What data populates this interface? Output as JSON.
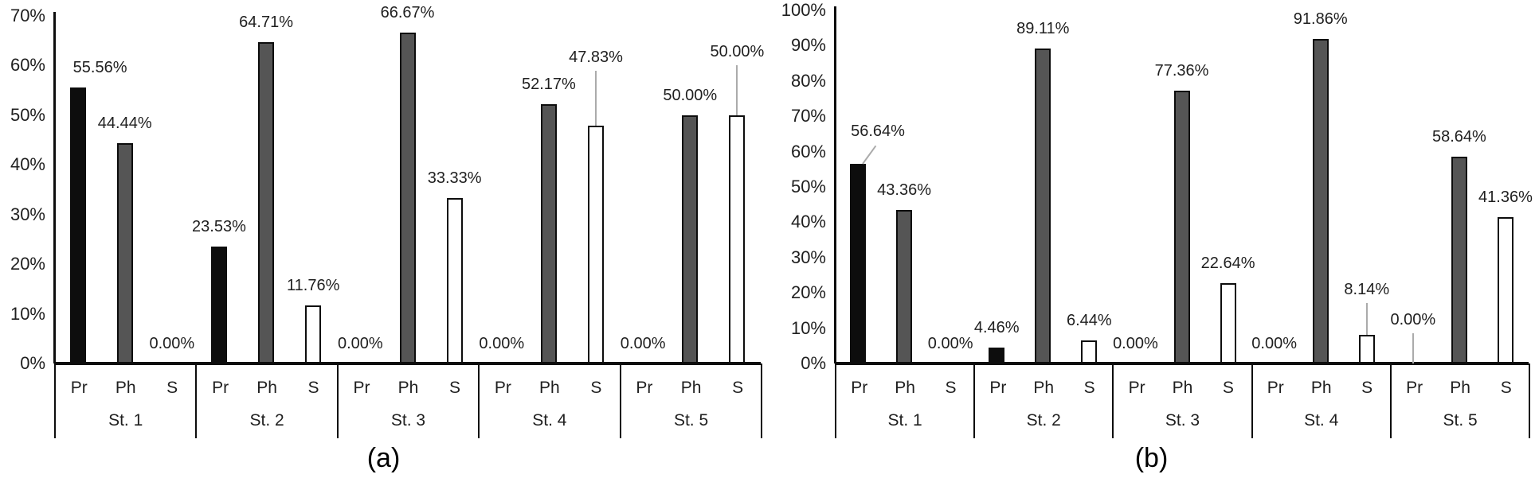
{
  "figure_type": "two-panel clustered bar chart",
  "colors": {
    "bar_pr": "#0d0d0d",
    "bar_ph": "#555555",
    "bar_s_fill": "#ffffff",
    "outline": "#0d0d0d",
    "leader_line": "#ababab",
    "text": "#1f1f1f"
  },
  "chart_data": [
    {
      "id": "a",
      "type": "bar",
      "caption": "(a)",
      "title": "",
      "grid": false,
      "legend": "none",
      "value_label_format": "0.00%",
      "y_axis": {
        "min": 0,
        "max": 70,
        "step": 10,
        "tick_labels": [
          "0%",
          "10%",
          "20%",
          "30%",
          "40%",
          "50%",
          "60%",
          "70%"
        ]
      },
      "group_labels": [
        "St. 1",
        "St. 2",
        "St. 3",
        "St. 4",
        "St. 5"
      ],
      "bar_labels": [
        "Pr",
        "Ph",
        "S"
      ],
      "series": [
        {
          "name": "Pr",
          "values": [
            55.56,
            23.53,
            0.0,
            0.0,
            0.0
          ]
        },
        {
          "name": "Ph",
          "values": [
            44.44,
            64.71,
            66.67,
            52.17,
            50.0
          ]
        },
        {
          "name": "S",
          "values": [
            0.0,
            11.76,
            33.33,
            47.83,
            50.0
          ]
        }
      ],
      "points": [
        {
          "group": "St. 1",
          "bar": "Pr",
          "value": 55.56,
          "label": "55.56%",
          "label_dx": 28
        },
        {
          "group": "St. 1",
          "bar": "Ph",
          "value": 44.44,
          "label": "44.44%"
        },
        {
          "group": "St. 1",
          "bar": "S",
          "value": 0.0,
          "label": "0.00%"
        },
        {
          "group": "St. 2",
          "bar": "Pr",
          "value": 23.53,
          "label": "23.53%"
        },
        {
          "group": "St. 2",
          "bar": "Ph",
          "value": 64.71,
          "label": "64.71%"
        },
        {
          "group": "St. 2",
          "bar": "S",
          "value": 11.76,
          "label": "11.76%"
        },
        {
          "group": "St. 3",
          "bar": "Pr",
          "value": 0.0,
          "label": "0.00%"
        },
        {
          "group": "St. 3",
          "bar": "Ph",
          "value": 66.67,
          "label": "66.67%"
        },
        {
          "group": "St. 3",
          "bar": "S",
          "value": 33.33,
          "label": "33.33%"
        },
        {
          "group": "St. 4",
          "bar": "Pr",
          "value": 0.0,
          "label": "0.00%"
        },
        {
          "group": "St. 4",
          "bar": "Ph",
          "value": 52.17,
          "label": "52.17%"
        },
        {
          "group": "St. 4",
          "bar": "S",
          "value": 47.83,
          "label": "47.83%",
          "label_dy": -61,
          "leader": "v"
        },
        {
          "group": "St. 5",
          "bar": "Pr",
          "value": 0.0,
          "label": "0.00%"
        },
        {
          "group": "St. 5",
          "bar": "Ph",
          "value": 50.0,
          "label": "50.00%"
        },
        {
          "group": "St. 5",
          "bar": "S",
          "value": 50.0,
          "label": "50.00%",
          "label_dy": -55,
          "leader": "v"
        }
      ]
    },
    {
      "id": "b",
      "type": "bar",
      "caption": "(b)",
      "title": "",
      "grid": false,
      "legend": "none",
      "value_label_format": "0.00%",
      "y_axis": {
        "min": 0,
        "max": 100,
        "step": 10,
        "tick_labels": [
          "0%",
          "10%",
          "20%",
          "30%",
          "40%",
          "50%",
          "60%",
          "70%",
          "80%",
          "90%",
          "100%"
        ]
      },
      "group_labels": [
        "St. 1",
        "St. 2",
        "St. 3",
        "St. 4",
        "St. 5"
      ],
      "bar_labels": [
        "Pr",
        "Ph",
        "S"
      ],
      "series": [
        {
          "name": "Pr",
          "values": [
            56.64,
            4.46,
            0.0,
            0.0,
            0.0
          ]
        },
        {
          "name": "Ph",
          "values": [
            43.36,
            89.11,
            77.36,
            91.86,
            58.64
          ]
        },
        {
          "name": "S",
          "values": [
            0.0,
            6.44,
            22.64,
            8.14,
            41.36
          ]
        }
      ],
      "points": [
        {
          "group": "St. 1",
          "bar": "Pr",
          "value": 56.64,
          "label": "56.64%",
          "label_dx": 25,
          "label_dy": -16,
          "leader": "d"
        },
        {
          "group": "St. 1",
          "bar": "Ph",
          "value": 43.36,
          "label": "43.36%"
        },
        {
          "group": "St. 1",
          "bar": "S",
          "value": 0.0,
          "label": "0.00%"
        },
        {
          "group": "St. 2",
          "bar": "Pr",
          "value": 4.46,
          "label": "4.46%"
        },
        {
          "group": "St. 2",
          "bar": "Ph",
          "value": 89.11,
          "label": "89.11%"
        },
        {
          "group": "St. 2",
          "bar": "S",
          "value": 6.44,
          "label": "6.44%"
        },
        {
          "group": "St. 3",
          "bar": "Pr",
          "value": 0.0,
          "label": "0.00%"
        },
        {
          "group": "St. 3",
          "bar": "Ph",
          "value": 77.36,
          "label": "77.36%"
        },
        {
          "group": "St. 3",
          "bar": "S",
          "value": 22.64,
          "label": "22.64%"
        },
        {
          "group": "St. 4",
          "bar": "Pr",
          "value": 0.0,
          "label": "0.00%"
        },
        {
          "group": "St. 4",
          "bar": "Ph",
          "value": 91.86,
          "label": "91.86%"
        },
        {
          "group": "St. 4",
          "bar": "S",
          "value": 8.14,
          "label": "8.14%",
          "label_dy": -32,
          "leader": "v"
        },
        {
          "group": "St. 5",
          "bar": "Pr",
          "value": 0.0,
          "label": "0.00%",
          "label_dy": -30,
          "leader": "v"
        },
        {
          "group": "St. 5",
          "bar": "Ph",
          "value": 58.64,
          "label": "58.64%"
        },
        {
          "group": "St. 5",
          "bar": "S",
          "value": 41.36,
          "label": "41.36%"
        }
      ]
    }
  ]
}
